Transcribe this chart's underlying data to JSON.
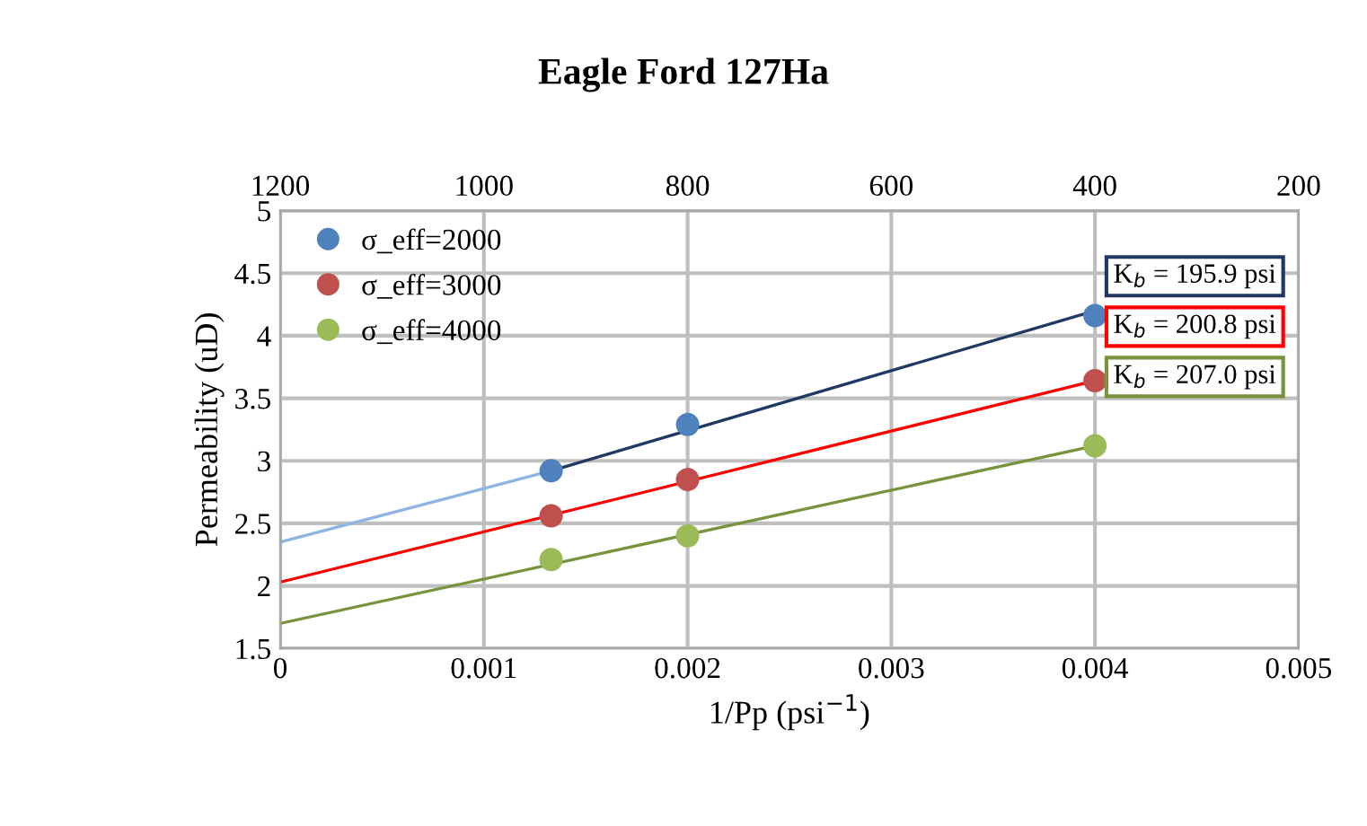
{
  "chart_data": {
    "type": "scatter",
    "title": "Eagle Ford 127Ha",
    "xlabel": "1/Pp (psi$^{−1}$)",
    "ylabel": "Permeability (uD)",
    "xlim": [
      0,
      0.005
    ],
    "xticks": [
      0,
      0.001,
      0.002,
      0.003,
      0.004,
      0.005
    ],
    "ylim": [
      1.5,
      5
    ],
    "yticks": [
      1.5,
      2,
      2.5,
      3,
      3.5,
      4,
      4.5,
      5
    ],
    "x2lim": [
      1200,
      200
    ],
    "x2ticks": [
      1200,
      1000,
      800,
      600,
      400,
      200
    ],
    "x": [
      0.00133,
      0.002,
      0.004
    ],
    "series": [
      {
        "name": "σ_eff=2000",
        "color": "#4f81bd",
        "values": [
          2.92,
          3.29,
          4.16
        ]
      },
      {
        "name": "σ_eff=3000",
        "color": "#c0504d",
        "values": [
          2.56,
          2.85,
          3.64
        ]
      },
      {
        "name": "σ_eff=4000",
        "color": "#9bbb59",
        "values": [
          2.21,
          2.4,
          3.12
        ]
      },
      {
        "type": "line",
        "marker": "none",
        "color": "#8eb4e3",
        "x": [
          0,
          0.00133
        ],
        "values": [
          2.35,
          2.92
        ]
      },
      {
        "type": "line",
        "marker": "none",
        "color": "#1f3864",
        "x": [
          0.00133,
          0.004
        ],
        "values": [
          2.92,
          4.2
        ]
      },
      {
        "type": "line",
        "marker": "none",
        "color": "#ff0000",
        "x": [
          0,
          0.004
        ],
        "values": [
          2.03,
          3.64
        ]
      },
      {
        "type": "line",
        "marker": "none",
        "color": "#77933c",
        "x": [
          0,
          0.004
        ],
        "values": [
          1.7,
          3.12
        ]
      }
    ],
    "annotations": [
      "K$_{b}$ = 195.9 psi",
      "K$_{b}$ = 200.8 psi",
      "K$_{b}$ = 207.0 psi"
    ],
    "grid": true,
    "legend": "top left",
    "marker": "circle"
  }
}
